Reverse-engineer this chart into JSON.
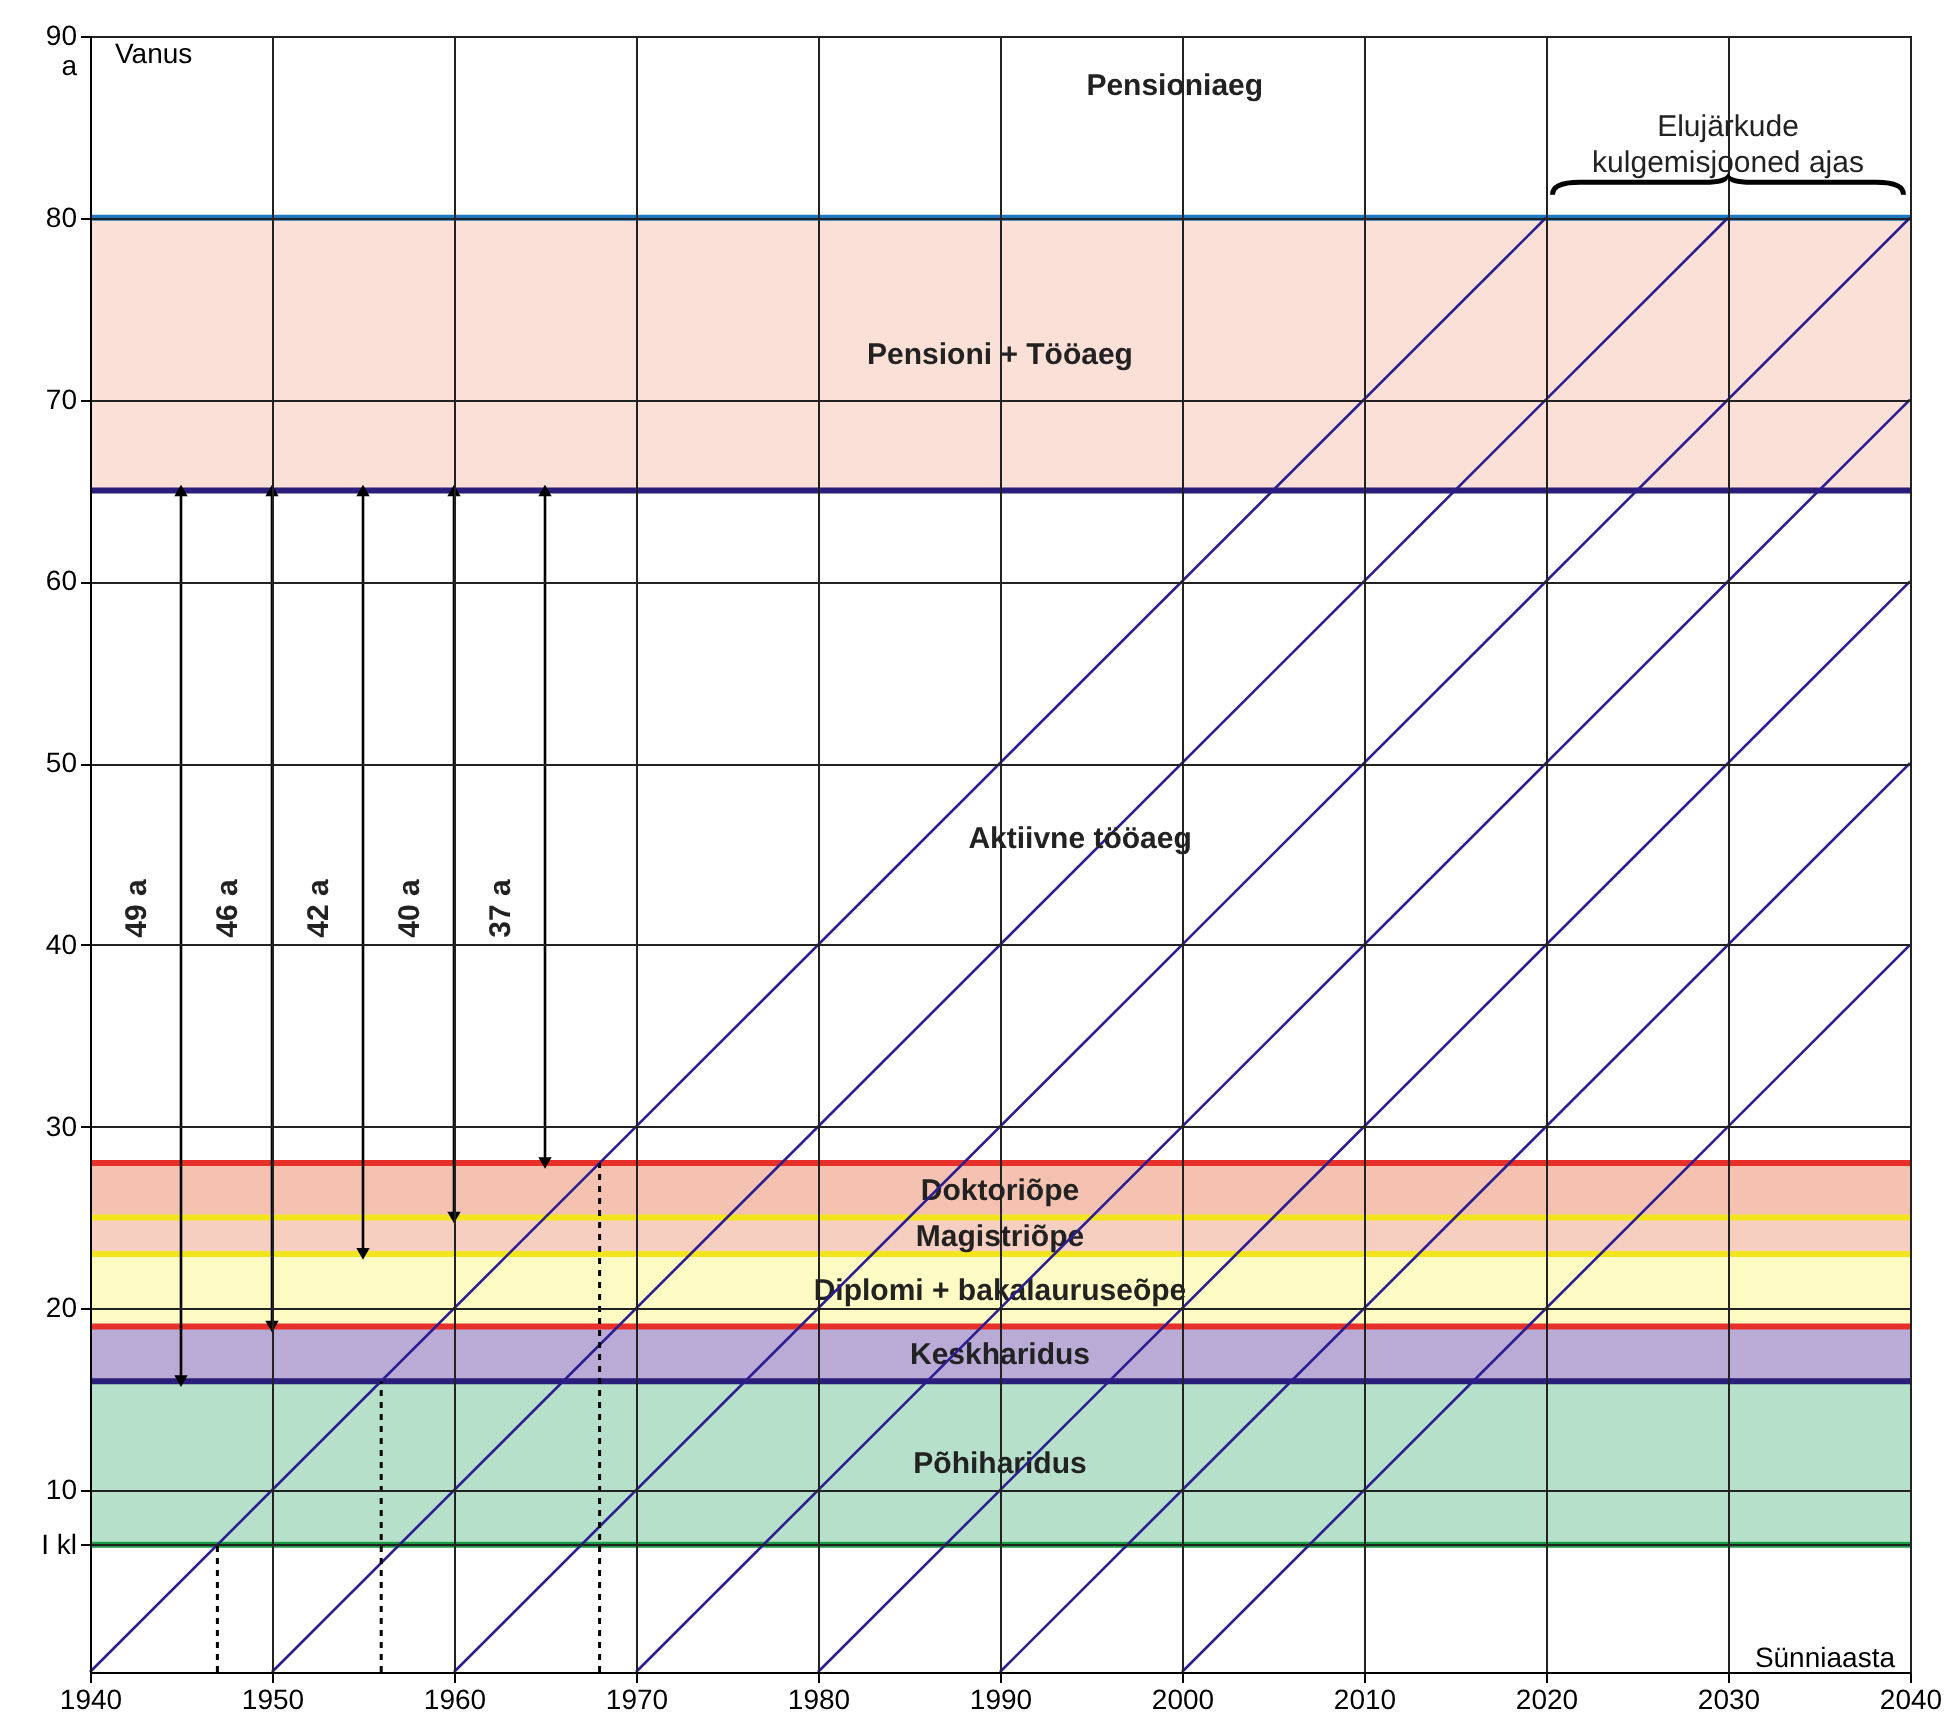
{
  "chart_data": {
    "type": "line",
    "ylabel": "Vanus",
    "xlabel": "Sünniaasta",
    "xlim": [
      1940,
      2040
    ],
    "ylim": [
      0,
      90
    ],
    "xticks": [
      1940,
      1950,
      1960,
      1970,
      1980,
      1990,
      2000,
      2010,
      2020,
      2030,
      2040
    ],
    "yticks": [
      {
        "value": 7,
        "label": "I kl"
      },
      10,
      20,
      30,
      40,
      50,
      60,
      70,
      80,
      {
        "value": 90,
        "label": "90\na"
      }
    ],
    "grid": true,
    "series": [
      {
        "color": "#2b1d8f",
        "x": [
          1940,
          2020
        ],
        "values": [
          0,
          80
        ]
      },
      {
        "color": "#2b1d8f",
        "x": [
          1950,
          2030
        ],
        "values": [
          0,
          80
        ]
      },
      {
        "color": "#2b1d8f",
        "x": [
          1960,
          2040
        ],
        "values": [
          0,
          80
        ]
      },
      {
        "color": "#2b1d8f",
        "x": [
          1970,
          2040
        ],
        "values": [
          0,
          70
        ]
      },
      {
        "color": "#2b1d8f",
        "x": [
          1980,
          2040
        ],
        "values": [
          0,
          60
        ]
      },
      {
        "color": "#2b1d8f",
        "x": [
          1990,
          2040
        ],
        "values": [
          0,
          50
        ]
      },
      {
        "color": "#2b1d8f",
        "x": [
          2000,
          2040
        ],
        "values": [
          0,
          40
        ]
      },
      {
        "color": "#000000",
        "line_style": "dotted",
        "x": [
          1947,
          1947
        ],
        "values": [
          0,
          7
        ]
      },
      {
        "color": "#000000",
        "line_style": "dotted",
        "x": [
          1956,
          1956
        ],
        "values": [
          0,
          16
        ]
      },
      {
        "color": "#000000",
        "line_style": "dotted",
        "x": [
          1968,
          1968
        ],
        "values": [
          0,
          28
        ]
      },
      {
        "color": "#000000",
        "marker": "triangle",
        "x": [
          1945,
          1945
        ],
        "values": [
          16,
          65
        ]
      },
      {
        "color": "#000000",
        "marker": "triangle",
        "x": [
          1950,
          1950
        ],
        "values": [
          19,
          65
        ]
      },
      {
        "color": "#000000",
        "marker": "triangle",
        "x": [
          1955,
          1955
        ],
        "values": [
          23,
          65
        ]
      },
      {
        "color": "#000000",
        "marker": "triangle",
        "x": [
          1960,
          1960
        ],
        "values": [
          25,
          65
        ]
      },
      {
        "color": "#000000",
        "marker": "triangle",
        "x": [
          1965,
          1965
        ],
        "values": [
          28,
          65
        ]
      }
    ],
    "bands": [
      {
        "axis": "y",
        "from": 7,
        "to": 16,
        "label": "Põhiharidus",
        "color": "#b7e0cb"
      },
      {
        "axis": "y",
        "from": 16,
        "to": 19,
        "label": "Keskharidus",
        "color": "#b9aad6"
      },
      {
        "axis": "y",
        "from": 19,
        "to": 23,
        "label": "Diplomi + bakalauruseõpe",
        "color": "#fdfbc3"
      },
      {
        "axis": "y",
        "from": 23,
        "to": 25,
        "label": "Magistriõpe",
        "color": "#f6cfc0"
      },
      {
        "axis": "y",
        "from": 25,
        "to": 28,
        "label": "Doktoriõpe",
        "color": "#f5c2b1"
      },
      {
        "axis": "y",
        "from": 65,
        "to": 80,
        "label": "Pensioni + Tööaeg",
        "color": "#fae0d6"
      }
    ],
    "ref_lines": [
      {
        "axis": "y",
        "value": 7,
        "color": "#1d9a45"
      },
      {
        "axis": "y",
        "value": 16,
        "color": "#2b1d7a"
      },
      {
        "axis": "y",
        "value": 19,
        "color": "#e8302a"
      },
      {
        "axis": "y",
        "value": 23,
        "color": "#f3e51d"
      },
      {
        "axis": "y",
        "value": 25,
        "color": "#f3e51d"
      },
      {
        "axis": "y",
        "value": 28,
        "color": "#e8302a"
      },
      {
        "axis": "y",
        "value": 65,
        "color": "#2b1d7a"
      },
      {
        "axis": "y",
        "value": 80,
        "color": "#1c78c0"
      }
    ],
    "annotations": [
      {
        "text": "49 a",
        "x": 1945,
        "y": 42
      },
      {
        "text": "46 a",
        "x": 1950,
        "y": 42
      },
      {
        "text": "42 a",
        "x": 1955,
        "y": 42
      },
      {
        "text": "40 a",
        "x": 1960,
        "y": 42
      },
      {
        "text": "37 a",
        "x": 1965,
        "y": 42
      },
      "Pensioniaeg",
      "Aktiivne tööaeg",
      "Elujärkude\nkulgemisjooned ajas"
    ]
  }
}
